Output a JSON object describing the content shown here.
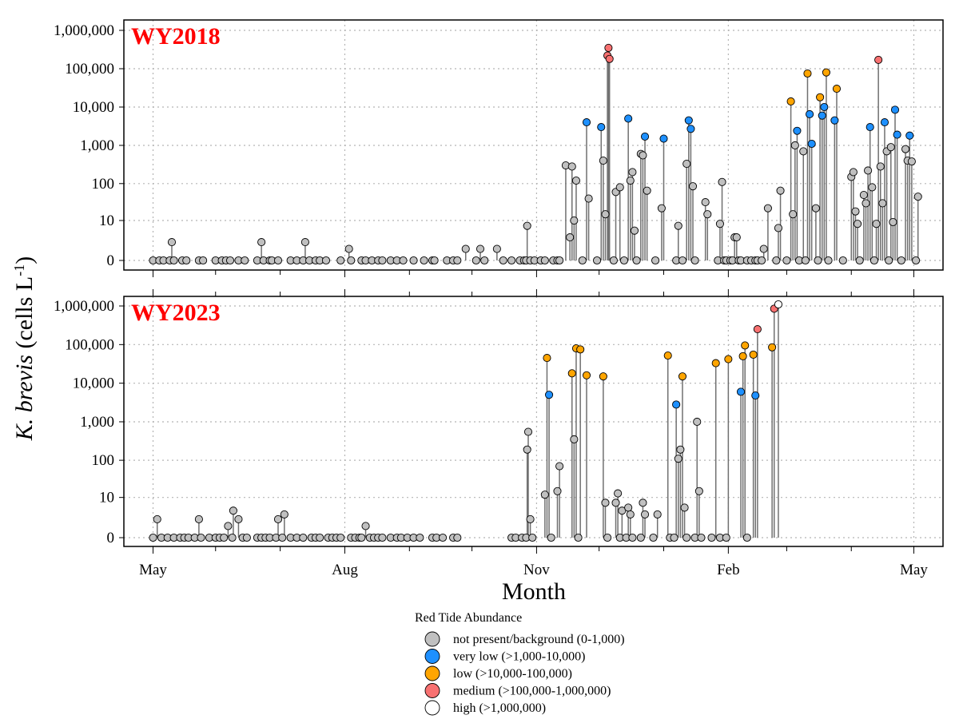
{
  "chart_data": {
    "type": "lollipop",
    "ylabel": {
      "italic": "K. brevis",
      "rest": " (cells L",
      "sup": "-1",
      "close": ")"
    },
    "xlabel": "Month",
    "x_ticks": [
      {
        "label": "May",
        "day": 0
      },
      {
        "label": "Aug",
        "day": 92
      },
      {
        "label": "Nov",
        "day": 184
      },
      {
        "label": "Feb",
        "day": 276
      },
      {
        "label": "May",
        "day": 365
      }
    ],
    "x_minor_days": [
      0,
      30,
      61,
      92,
      123,
      153,
      184,
      214,
      245,
      276,
      304,
      335,
      365
    ],
    "xlim_days": [
      -14,
      379
    ],
    "y_ticks": [
      0,
      10,
      100,
      1000,
      10000,
      100000,
      1000000
    ],
    "y_tick_labels": [
      "0",
      "10",
      "100",
      "1,000",
      "10,000",
      "100,000",
      "1,000,000"
    ],
    "legend": {
      "title": "Red Tide Abundance",
      "items": [
        {
          "label": "not present/background (0-1,000)",
          "color": "#c0c0c0"
        },
        {
          "label": "very low (>1,000-10,000)",
          "color": "#1e90ff"
        },
        {
          "label": "low (>10,000-100,000)",
          "color": "#ffa500"
        },
        {
          "label": "medium (>100,000-1,000,000)",
          "color": "#f87171"
        },
        {
          "label": "high (>1,000,000)",
          "color": "#ffffff"
        }
      ]
    },
    "panels": [
      {
        "label": "WY2018",
        "points": [
          [
            0,
            0
          ],
          [
            3,
            0
          ],
          [
            5,
            0
          ],
          [
            8,
            0
          ],
          [
            9,
            2
          ],
          [
            10,
            0
          ],
          [
            14,
            0
          ],
          [
            16,
            0
          ],
          [
            22,
            0
          ],
          [
            24,
            0
          ],
          [
            30,
            0
          ],
          [
            33,
            0
          ],
          [
            35,
            0
          ],
          [
            37,
            0
          ],
          [
            41,
            0
          ],
          [
            44,
            0
          ],
          [
            50,
            0
          ],
          [
            52,
            2
          ],
          [
            53,
            0
          ],
          [
            56,
            0
          ],
          [
            57,
            0
          ],
          [
            60,
            0
          ],
          [
            66,
            0
          ],
          [
            69,
            0
          ],
          [
            72,
            0
          ],
          [
            73,
            2
          ],
          [
            75,
            0
          ],
          [
            78,
            0
          ],
          [
            80,
            0
          ],
          [
            83,
            0
          ],
          [
            90,
            0
          ],
          [
            94,
            1
          ],
          [
            95,
            0
          ],
          [
            100,
            0
          ],
          [
            102,
            0
          ],
          [
            105,
            0
          ],
          [
            108,
            0
          ],
          [
            110,
            0
          ],
          [
            114,
            0
          ],
          [
            117,
            0
          ],
          [
            120,
            0
          ],
          [
            125,
            0
          ],
          [
            130,
            0
          ],
          [
            134,
            0
          ],
          [
            135,
            0
          ],
          [
            141,
            0
          ],
          [
            144,
            0
          ],
          [
            146,
            0
          ],
          [
            150,
            1
          ],
          [
            155,
            0
          ],
          [
            157,
            1
          ],
          [
            159,
            0
          ],
          [
            165,
            1
          ],
          [
            168,
            0
          ],
          [
            172,
            0
          ],
          [
            176,
            0
          ],
          [
            178,
            0
          ],
          [
            179,
            0
          ],
          [
            179.5,
            7
          ],
          [
            181,
            0
          ],
          [
            183,
            0
          ],
          [
            186,
            0
          ],
          [
            188,
            0
          ],
          [
            192,
            0
          ],
          [
            194,
            0
          ],
          [
            195,
            0
          ],
          [
            198,
            300
          ],
          [
            200,
            3
          ],
          [
            201,
            280
          ],
          [
            202,
            10
          ],
          [
            203,
            120
          ],
          [
            206,
            0
          ],
          [
            208,
            4000
          ],
          [
            209,
            40
          ],
          [
            213,
            0
          ],
          [
            215,
            3000
          ],
          [
            216,
            400
          ],
          [
            217,
            15
          ],
          [
            218,
            220000
          ],
          [
            218.5,
            350000
          ],
          [
            219,
            180000
          ],
          [
            221,
            0
          ],
          [
            222,
            60
          ],
          [
            224,
            80
          ],
          [
            226,
            0
          ],
          [
            228,
            5000
          ],
          [
            229,
            120
          ],
          [
            230,
            200
          ],
          [
            231,
            5
          ],
          [
            232,
            0
          ],
          [
            234,
            600
          ],
          [
            235,
            550
          ],
          [
            236,
            1700
          ],
          [
            237,
            65
          ],
          [
            241,
            0
          ],
          [
            244,
            22
          ],
          [
            245,
            1500
          ],
          [
            251,
            0
          ],
          [
            252,
            7
          ],
          [
            254,
            0
          ],
          [
            256,
            330
          ],
          [
            257,
            4500
          ],
          [
            258,
            2700
          ],
          [
            259,
            85
          ],
          [
            260,
            0
          ],
          [
            265,
            32
          ],
          [
            266,
            15
          ],
          [
            271,
            0
          ],
          [
            272,
            8
          ],
          [
            273,
            110
          ],
          [
            274,
            0
          ],
          [
            275,
            0
          ],
          [
            277,
            0
          ],
          [
            278,
            0
          ],
          [
            279,
            3
          ],
          [
            280,
            3
          ],
          [
            281,
            0
          ],
          [
            282,
            0
          ],
          [
            285,
            0
          ],
          [
            287,
            0
          ],
          [
            289,
            0
          ],
          [
            290,
            0
          ],
          [
            292,
            0
          ],
          [
            293,
            1
          ],
          [
            295,
            22
          ],
          [
            299,
            0
          ],
          [
            300,
            6
          ],
          [
            301,
            65
          ],
          [
            304,
            0
          ],
          [
            306,
            14000
          ],
          [
            307,
            15
          ],
          [
            308,
            1000
          ],
          [
            309,
            2400
          ],
          [
            310,
            0
          ],
          [
            312,
            700
          ],
          [
            313,
            0
          ],
          [
            314,
            75000
          ],
          [
            315,
            6500
          ],
          [
            316,
            1100
          ],
          [
            318,
            22
          ],
          [
            319,
            0
          ],
          [
            320,
            18000
          ],
          [
            321,
            6000
          ],
          [
            322,
            10000
          ],
          [
            323,
            80000
          ],
          [
            324,
            0
          ],
          [
            327,
            4500
          ],
          [
            328,
            30000
          ],
          [
            331,
            0
          ],
          [
            335,
            150
          ],
          [
            336,
            200
          ],
          [
            337,
            18
          ],
          [
            338,
            8
          ],
          [
            339,
            0
          ],
          [
            341,
            50
          ],
          [
            342,
            30
          ],
          [
            343,
            220
          ],
          [
            344,
            3000
          ],
          [
            345,
            80
          ],
          [
            346,
            0
          ],
          [
            347,
            8
          ],
          [
            348,
            170000
          ],
          [
            349,
            280
          ],
          [
            350,
            30
          ],
          [
            351,
            4000
          ],
          [
            352,
            700
          ],
          [
            353,
            0
          ],
          [
            354,
            900
          ],
          [
            355,
            9
          ],
          [
            356,
            8500
          ],
          [
            357,
            1900
          ],
          [
            359,
            0
          ],
          [
            361,
            800
          ],
          [
            362,
            400
          ],
          [
            363,
            1800
          ],
          [
            364,
            380
          ],
          [
            366,
            0
          ],
          [
            367,
            45
          ]
        ]
      },
      {
        "label": "WY2023",
        "points": [
          [
            0,
            0
          ],
          [
            2,
            2
          ],
          [
            4,
            0
          ],
          [
            7,
            0
          ],
          [
            10,
            0
          ],
          [
            13,
            0
          ],
          [
            15,
            0
          ],
          [
            17,
            0
          ],
          [
            20,
            0
          ],
          [
            22,
            2
          ],
          [
            23,
            0
          ],
          [
            27,
            0
          ],
          [
            30,
            0
          ],
          [
            32,
            0
          ],
          [
            34,
            0
          ],
          [
            36,
            1
          ],
          [
            38,
            0
          ],
          [
            38.5,
            4
          ],
          [
            41,
            2
          ],
          [
            43,
            0
          ],
          [
            45,
            0
          ],
          [
            50,
            0
          ],
          [
            52,
            0
          ],
          [
            54,
            0
          ],
          [
            56,
            0
          ],
          [
            59,
            0
          ],
          [
            60,
            2
          ],
          [
            62,
            0
          ],
          [
            63,
            3
          ],
          [
            66,
            0
          ],
          [
            69,
            0
          ],
          [
            72,
            0
          ],
          [
            76,
            0
          ],
          [
            78,
            0
          ],
          [
            80,
            0
          ],
          [
            84,
            0
          ],
          [
            86,
            0
          ],
          [
            88,
            0
          ],
          [
            90,
            0
          ],
          [
            95,
            0
          ],
          [
            97,
            0
          ],
          [
            99,
            0
          ],
          [
            100,
            0
          ],
          [
            102,
            1
          ],
          [
            104,
            0
          ],
          [
            106,
            0
          ],
          [
            108,
            0
          ],
          [
            110,
            0
          ],
          [
            114,
            0
          ],
          [
            117,
            0
          ],
          [
            119,
            0
          ],
          [
            122,
            0
          ],
          [
            125,
            0
          ],
          [
            128,
            0
          ],
          [
            134,
            0
          ],
          [
            136,
            0
          ],
          [
            139,
            0
          ],
          [
            144,
            0
          ],
          [
            146,
            0
          ],
          [
            172,
            0
          ],
          [
            174,
            0
          ],
          [
            177,
            0
          ],
          [
            179,
            0
          ],
          [
            179.5,
            190
          ],
          [
            180,
            550
          ],
          [
            181,
            2
          ],
          [
            182,
            0
          ],
          [
            188,
            12
          ],
          [
            189,
            45000
          ],
          [
            190,
            5000
          ],
          [
            191,
            0
          ],
          [
            194,
            15
          ],
          [
            195,
            70
          ],
          [
            201,
            18000
          ],
          [
            202,
            350
          ],
          [
            203,
            80000
          ],
          [
            204,
            0
          ],
          [
            205,
            75000
          ],
          [
            208,
            16000
          ],
          [
            216,
            15000
          ],
          [
            217,
            7
          ],
          [
            218,
            0
          ],
          [
            222,
            7
          ],
          [
            223,
            13
          ],
          [
            224,
            0
          ],
          [
            225,
            4
          ],
          [
            227,
            0
          ],
          [
            228,
            5
          ],
          [
            229,
            3
          ],
          [
            230,
            0
          ],
          [
            234,
            0
          ],
          [
            235,
            7
          ],
          [
            236,
            3
          ],
          [
            240,
            0
          ],
          [
            242,
            3
          ],
          [
            247,
            52000
          ],
          [
            248,
            0
          ],
          [
            250,
            0
          ],
          [
            251,
            2800
          ],
          [
            252,
            110
          ],
          [
            253,
            190
          ],
          [
            254,
            15000
          ],
          [
            255,
            5
          ],
          [
            256,
            0
          ],
          [
            260,
            0
          ],
          [
            261,
            1000
          ],
          [
            262,
            15
          ],
          [
            263,
            0
          ],
          [
            268,
            0
          ],
          [
            270,
            33000
          ],
          [
            272,
            0
          ],
          [
            275,
            0
          ],
          [
            276,
            42000
          ],
          [
            282,
            6000
          ],
          [
            283,
            50000
          ],
          [
            284,
            95000
          ],
          [
            285,
            0
          ],
          [
            288,
            55000
          ],
          [
            289,
            4800
          ],
          [
            290,
            250000
          ],
          [
            297,
            85000
          ],
          [
            298,
            850000
          ],
          [
            300,
            1100000
          ]
        ]
      }
    ]
  }
}
